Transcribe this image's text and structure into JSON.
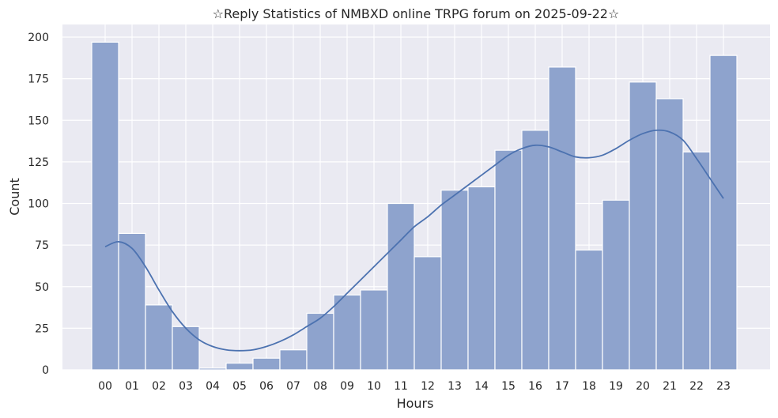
{
  "chart_data": {
    "type": "bar",
    "title": "☆Reply Statistics of NMBXD online TRPG forum on 2025-09-22☆",
    "xlabel": "Hours",
    "ylabel": "Count",
    "categories": [
      "00",
      "01",
      "02",
      "03",
      "04",
      "05",
      "06",
      "07",
      "08",
      "09",
      "10",
      "11",
      "12",
      "13",
      "14",
      "15",
      "16",
      "17",
      "18",
      "19",
      "20",
      "21",
      "22",
      "23"
    ],
    "values": [
      197,
      82,
      39,
      26,
      1,
      4,
      7,
      12,
      34,
      45,
      48,
      100,
      68,
      108,
      110,
      132,
      144,
      182,
      72,
      102,
      173,
      163,
      131,
      189
    ],
    "ylim": [
      0,
      207
    ],
    "yticks": [
      0,
      25,
      50,
      75,
      100,
      125,
      150,
      175,
      200
    ],
    "kde": {
      "x": [
        0,
        0.5,
        1,
        1.5,
        2,
        2.5,
        3,
        3.5,
        4,
        4.5,
        5,
        5.5,
        6,
        6.5,
        7,
        7.5,
        8,
        8.5,
        9,
        9.5,
        10,
        10.5,
        11,
        11.5,
        12,
        12.5,
        13,
        13.5,
        14,
        14.5,
        15,
        15.5,
        16,
        16.5,
        17,
        17.5,
        18,
        18.5,
        19,
        19.5,
        20,
        20.5,
        21,
        21.5,
        22,
        22.5,
        23
      ],
      "y": [
        74,
        77,
        73,
        62,
        48,
        35,
        25,
        18,
        14,
        12,
        11.5,
        12,
        14,
        17,
        21,
        26,
        31,
        38,
        46,
        54,
        62,
        70,
        78,
        86,
        92,
        99,
        105,
        111,
        117,
        123,
        129,
        133,
        135,
        134,
        131,
        128,
        127.5,
        129,
        133,
        138,
        142,
        144,
        143,
        138,
        127,
        115,
        103
      ]
    },
    "grid": true,
    "legend": "none",
    "bar_color": "#8ea3cd",
    "bar_edge_color": "#ffffff",
    "line_color": "#4c72b0",
    "background_color": "#eaeaf2",
    "grid_color": "#ffffff"
  }
}
